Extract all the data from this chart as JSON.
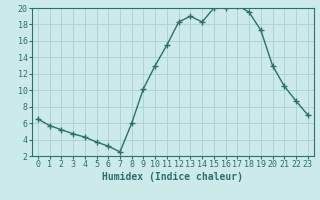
{
  "x": [
    0,
    1,
    2,
    3,
    4,
    5,
    6,
    7,
    8,
    9,
    10,
    11,
    12,
    13,
    14,
    15,
    16,
    17,
    18,
    19,
    20,
    21,
    22,
    23
  ],
  "y": [
    6.5,
    5.7,
    5.2,
    4.7,
    4.3,
    3.7,
    3.2,
    2.5,
    6.0,
    10.2,
    13.0,
    15.5,
    18.3,
    19.0,
    18.3,
    20.0,
    20.0,
    20.3,
    19.5,
    17.3,
    13.0,
    10.5,
    8.7,
    7.0
  ],
  "xlabel": "Humidex (Indice chaleur)",
  "ylim": [
    2,
    20
  ],
  "xlim_min": -0.5,
  "xlim_max": 23.5,
  "yticks": [
    2,
    4,
    6,
    8,
    10,
    12,
    14,
    16,
    18,
    20
  ],
  "xticks": [
    0,
    1,
    2,
    3,
    4,
    5,
    6,
    7,
    8,
    9,
    10,
    11,
    12,
    13,
    14,
    15,
    16,
    17,
    18,
    19,
    20,
    21,
    22,
    23
  ],
  "line_color": "#2d6e6e",
  "marker_color": "#2d6e6e",
  "bg_color": "#cdeaea",
  "grid_color": "#aed4d4",
  "xlabel_fontsize": 7.0,
  "tick_fontsize": 6.0
}
